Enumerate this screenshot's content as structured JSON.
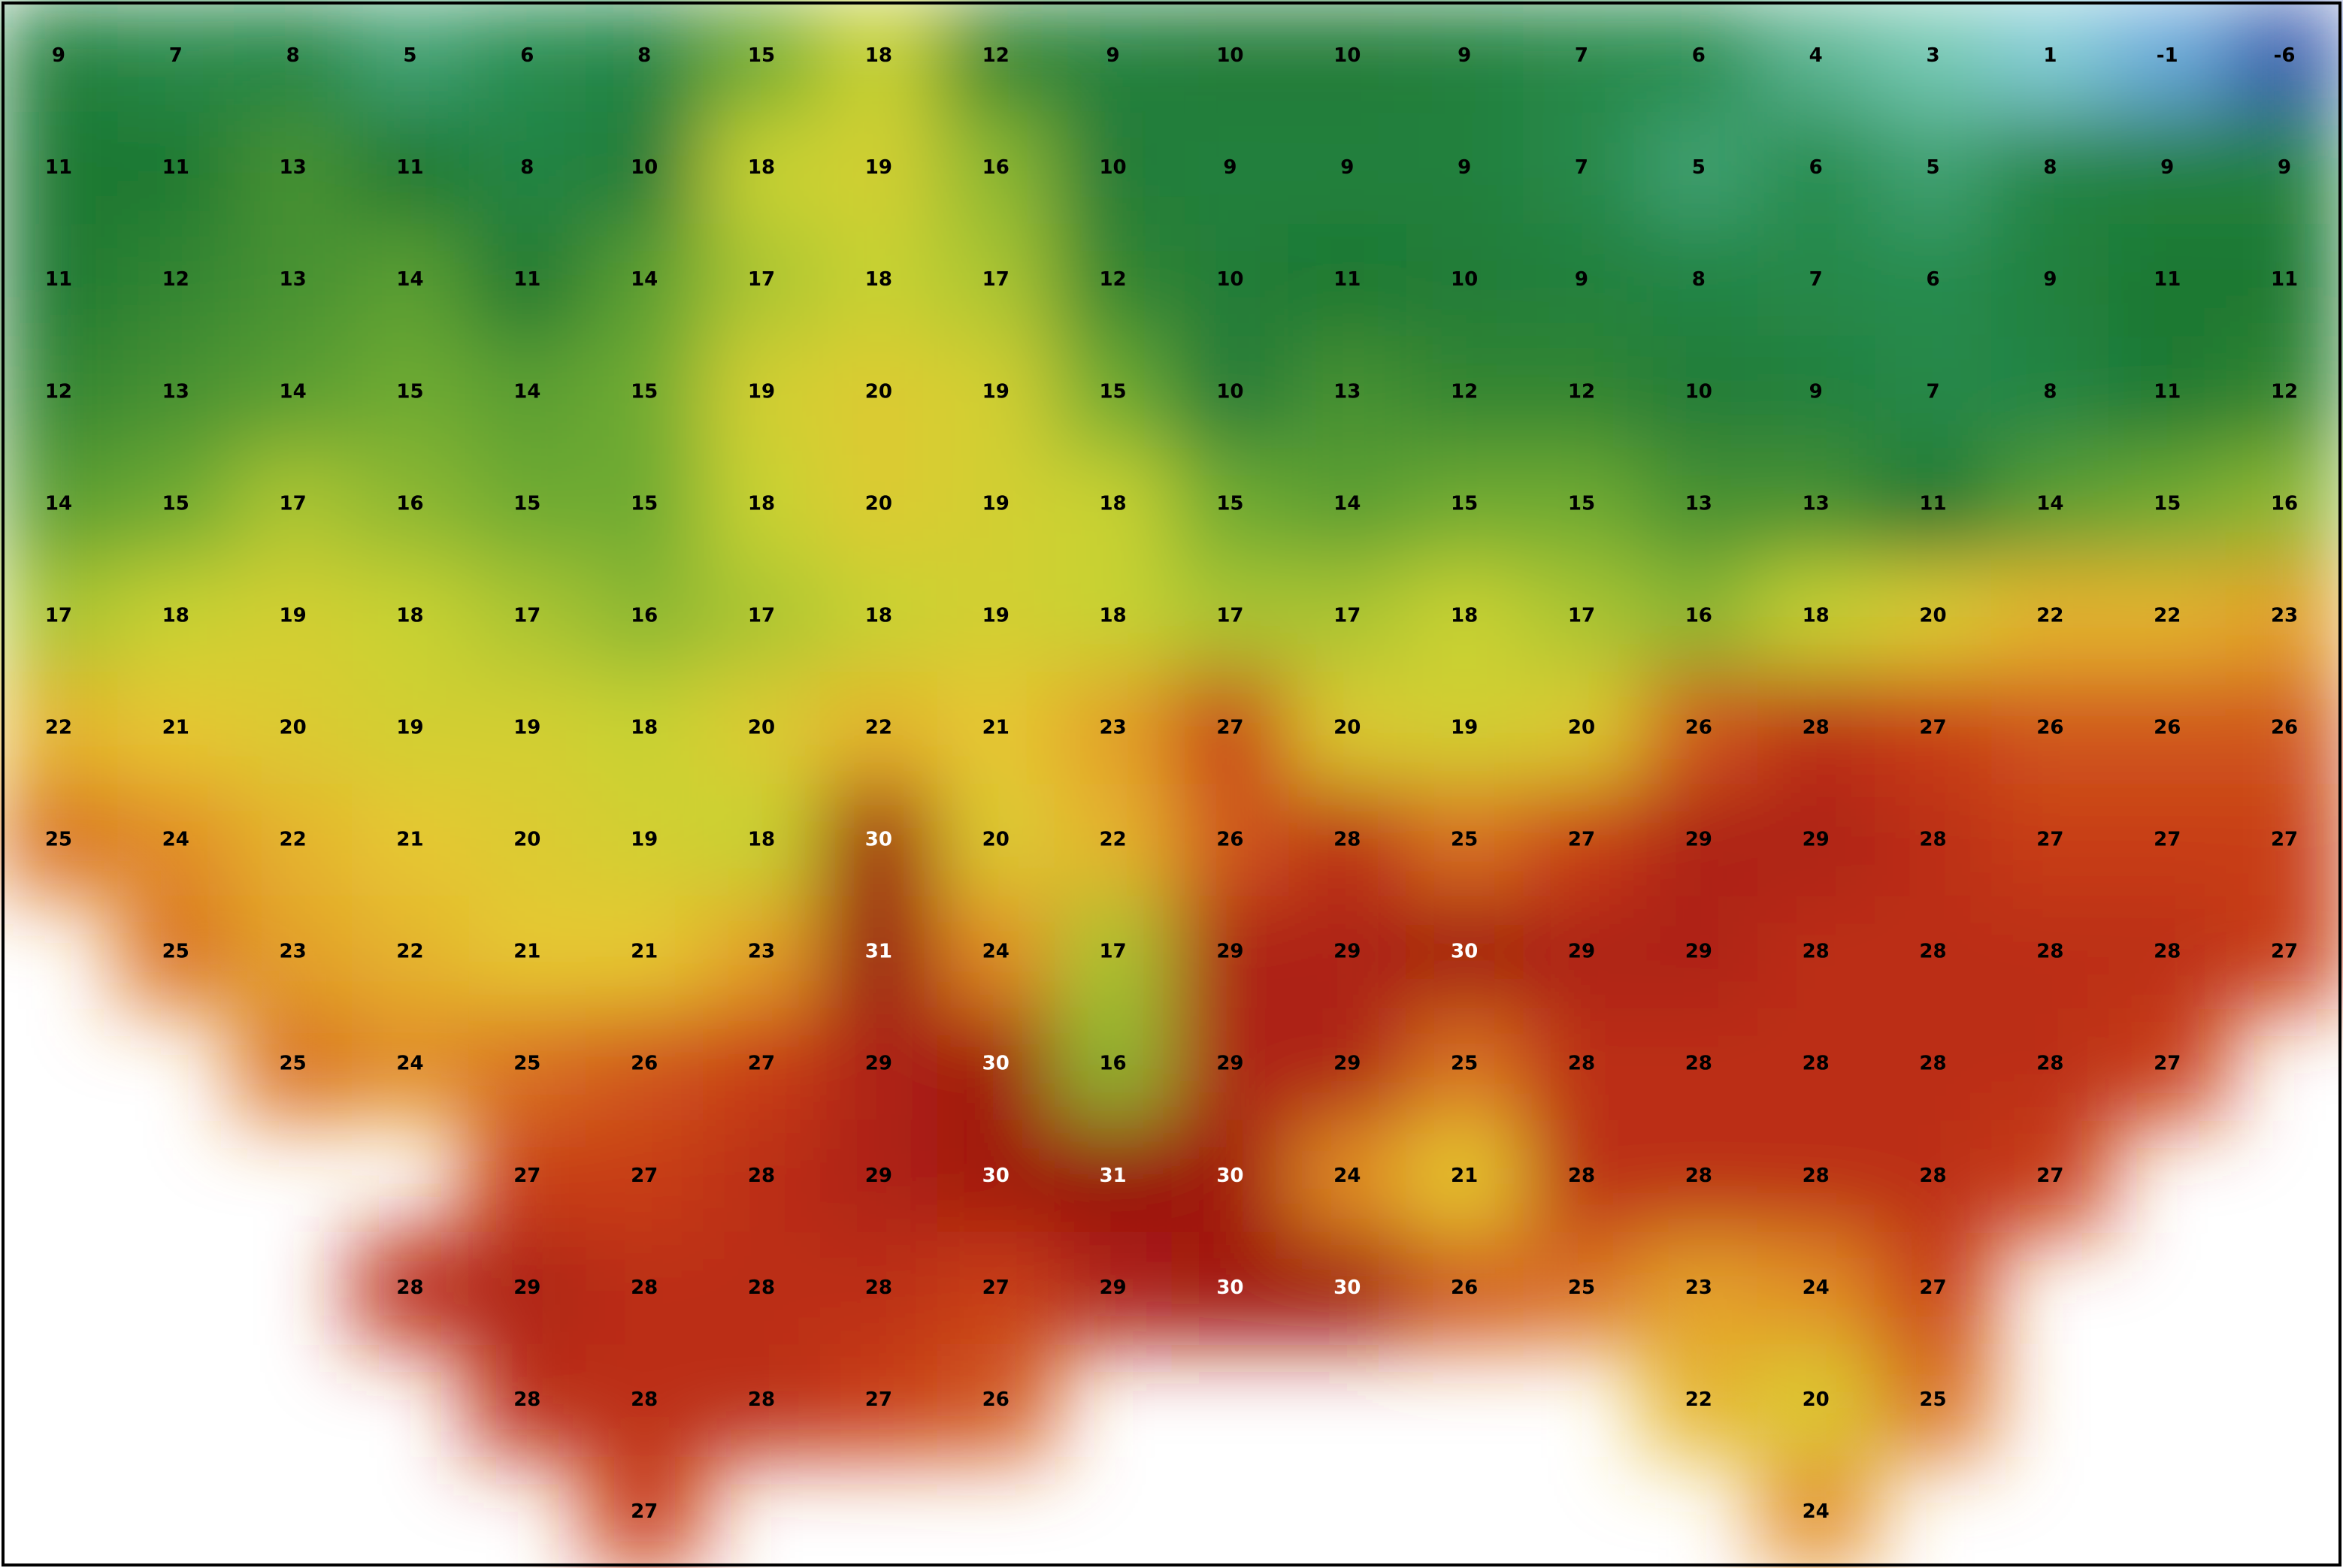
{
  "map": {
    "rows": [
      [
        9,
        7,
        8,
        5,
        6,
        8,
        15,
        18,
        12,
        9,
        10,
        10,
        9,
        7,
        6,
        4,
        3,
        1,
        -1,
        -6
      ],
      [
        11,
        11,
        13,
        11,
        8,
        10,
        18,
        19,
        16,
        10,
        9,
        9,
        9,
        7,
        5,
        6,
        5,
        8,
        9,
        9
      ],
      [
        11,
        12,
        13,
        14,
        11,
        14,
        17,
        18,
        17,
        12,
        10,
        11,
        10,
        9,
        8,
        7,
        6,
        9,
        11,
        11
      ],
      [
        12,
        13,
        14,
        15,
        14,
        15,
        19,
        20,
        19,
        15,
        10,
        13,
        12,
        12,
        10,
        9,
        7,
        8,
        11,
        12
      ],
      [
        14,
        15,
        17,
        16,
        15,
        15,
        18,
        20,
        19,
        18,
        15,
        14,
        15,
        15,
        13,
        13,
        11,
        14,
        15,
        16
      ],
      [
        17,
        18,
        19,
        18,
        17,
        16,
        17,
        18,
        19,
        18,
        17,
        17,
        18,
        17,
        16,
        18,
        20,
        22,
        22,
        23
      ],
      [
        22,
        21,
        20,
        19,
        19,
        18,
        20,
        22,
        21,
        23,
        27,
        20,
        19,
        20,
        26,
        28,
        27,
        26,
        26,
        26
      ],
      [
        25,
        24,
        22,
        21,
        20,
        19,
        18,
        30,
        20,
        22,
        26,
        28,
        25,
        27,
        29,
        29,
        28,
        27,
        27,
        27
      ],
      [
        null,
        25,
        23,
        22,
        21,
        21,
        23,
        31,
        24,
        17,
        29,
        29,
        30,
        29,
        29,
        28,
        28,
        28,
        28,
        27
      ],
      [
        null,
        null,
        25,
        24,
        25,
        26,
        27,
        29,
        30,
        16,
        29,
        29,
        25,
        28,
        28,
        28,
        28,
        28,
        27,
        null
      ],
      [
        null,
        null,
        null,
        null,
        27,
        27,
        28,
        29,
        30,
        31,
        30,
        24,
        21,
        28,
        28,
        28,
        28,
        27,
        null,
        null
      ],
      [
        null,
        null,
        null,
        28,
        29,
        28,
        28,
        28,
        27,
        29,
        30,
        30,
        26,
        25,
        23,
        24,
        27,
        null,
        null,
        null
      ],
      [
        null,
        null,
        null,
        null,
        28,
        28,
        28,
        27,
        26,
        null,
        null,
        null,
        null,
        null,
        22,
        20,
        25,
        null,
        null,
        null
      ],
      [
        null,
        null,
        null,
        null,
        null,
        27,
        null,
        null,
        null,
        null,
        null,
        null,
        null,
        null,
        null,
        24,
        null,
        null,
        null,
        null
      ]
    ]
  }
}
